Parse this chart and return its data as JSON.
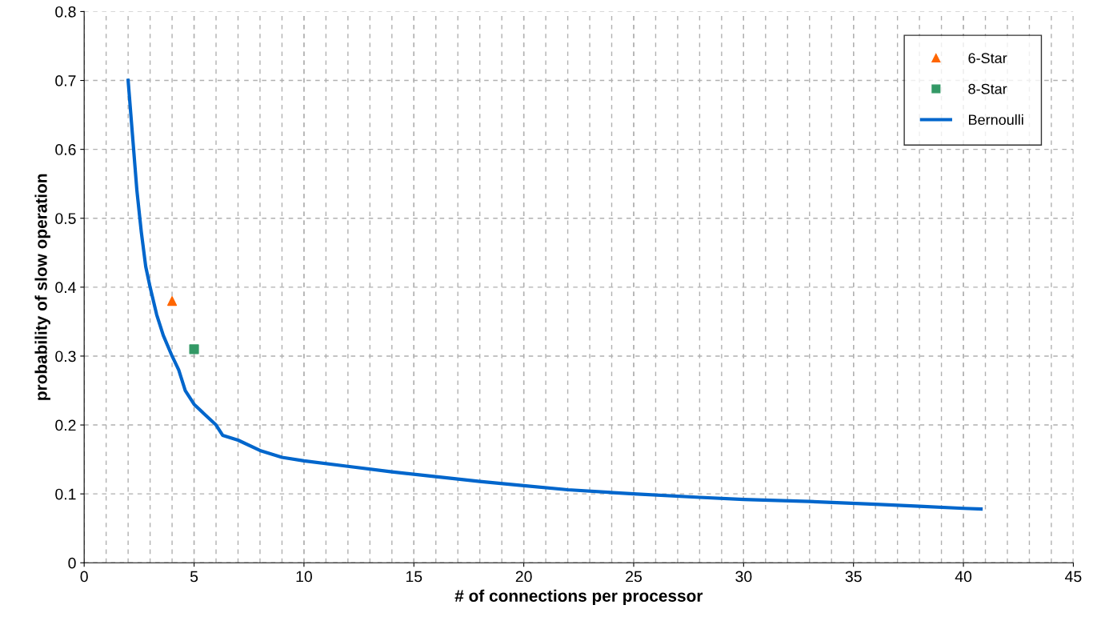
{
  "chart_data": {
    "type": "line",
    "xlabel": "# of connections per processor",
    "ylabel": "probability of slow operation",
    "xlim": [
      0,
      45
    ],
    "xticks": [
      0,
      5,
      10,
      15,
      20,
      25,
      30,
      35,
      40,
      45
    ],
    "ylim": [
      0,
      0.8
    ],
    "yticks": [
      0,
      0.1,
      0.2,
      0.3,
      0.4,
      0.5,
      0.6,
      0.7,
      0.8
    ],
    "grid": true,
    "legend": "top right",
    "series": [
      {
        "name": "6-Star",
        "type": "scatter",
        "marker": "triangle",
        "color": "#ff6600",
        "x": [
          4
        ],
        "values": [
          0.38
        ]
      },
      {
        "name": "8-Star",
        "type": "scatter",
        "marker": "square",
        "color": "#339966",
        "x": [
          5
        ],
        "values": [
          0.31
        ]
      },
      {
        "name": "Bernoulli",
        "marker": "none",
        "color": "#0066cc",
        "x": [
          2,
          2.2,
          2.4,
          2.6,
          2.8,
          3,
          3.3,
          3.6,
          4,
          4.3,
          4.6,
          5,
          5.5,
          6,
          6.3,
          7,
          8,
          9,
          10,
          12,
          14,
          16,
          18,
          20,
          22,
          25,
          28,
          30,
          33,
          36,
          38,
          40,
          40.8
        ],
        "values": [
          0.7,
          0.62,
          0.54,
          0.48,
          0.43,
          0.4,
          0.36,
          0.33,
          0.3,
          0.28,
          0.25,
          0.23,
          0.215,
          0.2,
          0.185,
          0.178,
          0.163,
          0.153,
          0.148,
          0.14,
          0.132,
          0.125,
          0.118,
          0.112,
          0.106,
          0.1,
          0.095,
          0.092,
          0.089,
          0.085,
          0.082,
          0.079,
          0.078
        ]
      }
    ]
  }
}
